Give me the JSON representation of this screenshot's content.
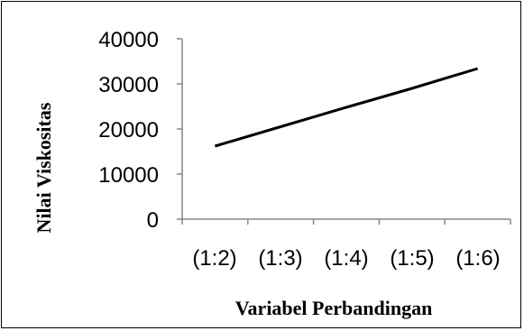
{
  "chart_data": {
    "type": "line",
    "categories": [
      "(1:2)",
      "(1:3)",
      "(1:4)",
      "(1:5)",
      "(1:6)"
    ],
    "series": [
      {
        "values": [
          16200,
          20500,
          24800,
          29000,
          33400
        ]
      }
    ],
    "yticks": [
      "0",
      "10000",
      "20000",
      "30000",
      "40000"
    ],
    "ylim": [
      0,
      40000
    ],
    "xlabel": "Variabel Perbandingan",
    "ylabel": "Nilai Viskositas",
    "title": "",
    "grid": false,
    "legend": "none",
    "line_color": "#000000"
  }
}
